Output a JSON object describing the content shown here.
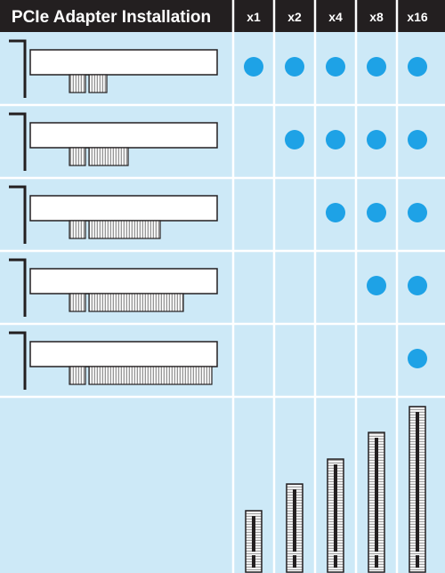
{
  "title": "PCIe Adapter Installation",
  "lane_widths": [
    "x1",
    "x2",
    "x4",
    "x8",
    "x16"
  ],
  "adapters": [
    {
      "lanes": "x1",
      "fits": [
        true,
        true,
        true,
        true,
        true
      ]
    },
    {
      "lanes": "x2",
      "fits": [
        false,
        true,
        true,
        true,
        true
      ]
    },
    {
      "lanes": "x4",
      "fits": [
        false,
        false,
        true,
        true,
        true
      ]
    },
    {
      "lanes": "x8",
      "fits": [
        false,
        false,
        false,
        true,
        true
      ]
    },
    {
      "lanes": "x16",
      "fits": [
        false,
        false,
        false,
        false,
        true
      ]
    }
  ],
  "colors": {
    "header_bg": "#231f20",
    "header_text": "#ffffff",
    "cell_bg": "#cde9f7",
    "grid_line": "#ffffff",
    "dot": "#1ea2e6",
    "outline": "#231f20",
    "card_fill": "#ffffff"
  },
  "icons": {
    "adapter": "pcie-adapter-card-icon",
    "slot": "pcie-slot-icon",
    "fit": "compatible-dot-icon"
  }
}
